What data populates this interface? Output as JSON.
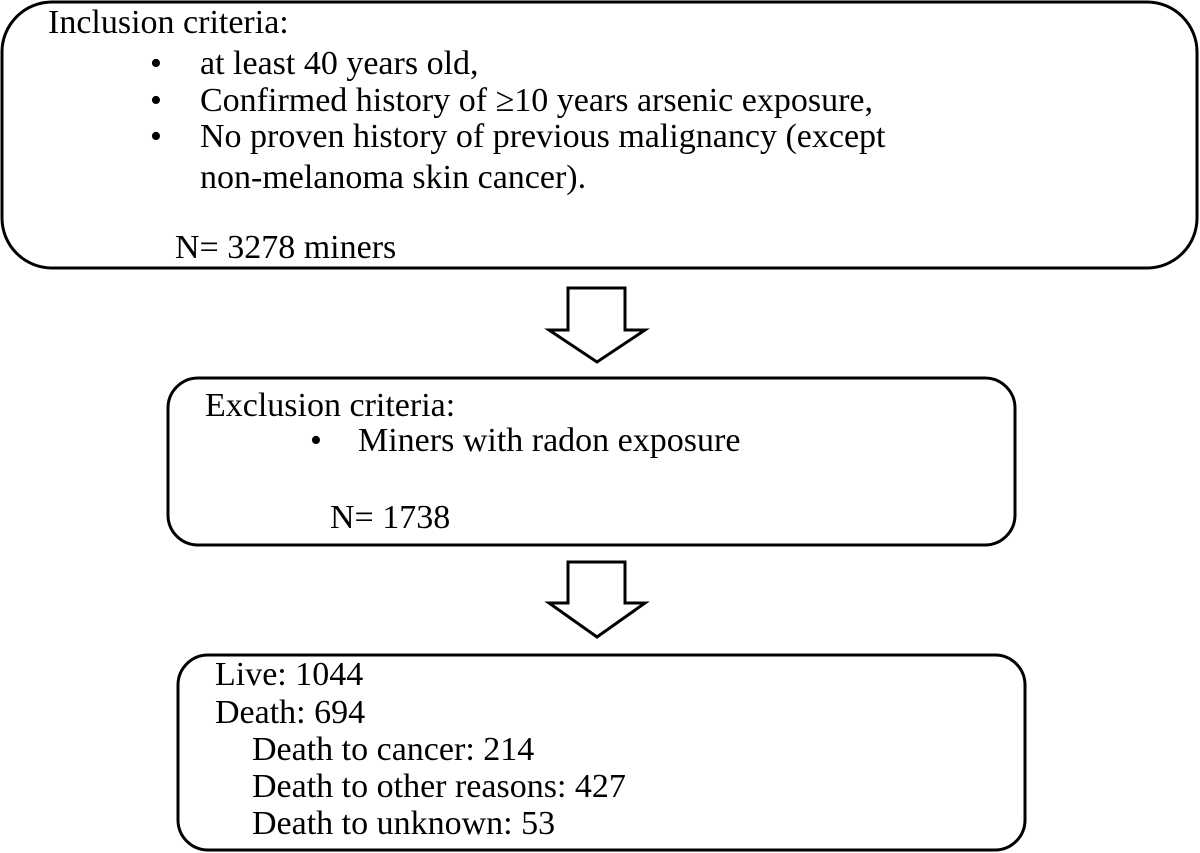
{
  "nodes": [
    {
      "title": "Inclusion criteria:",
      "items": [
        {
          "lines": [
            "at least 40 years old,"
          ]
        },
        {
          "lines": [
            "Confirmed history of ≥10 years arsenic exposure,"
          ]
        },
        {
          "lines": [
            "No proven history of previous malignancy (except",
            "non-melanoma skin cancer)."
          ]
        }
      ],
      "note": "N= 3278 miners"
    },
    {
      "title": "Exclusion criteria:",
      "items": [
        {
          "lines": [
            "Miners with radon exposure"
          ]
        }
      ],
      "note": "N= 1738"
    },
    {
      "lines": [
        "Live: 1044",
        "Death: 694"
      ],
      "sublines": [
        "Death to cancer: 214",
        "Death to other reasons: 427",
        "Death to unknown: 53"
      ]
    }
  ]
}
